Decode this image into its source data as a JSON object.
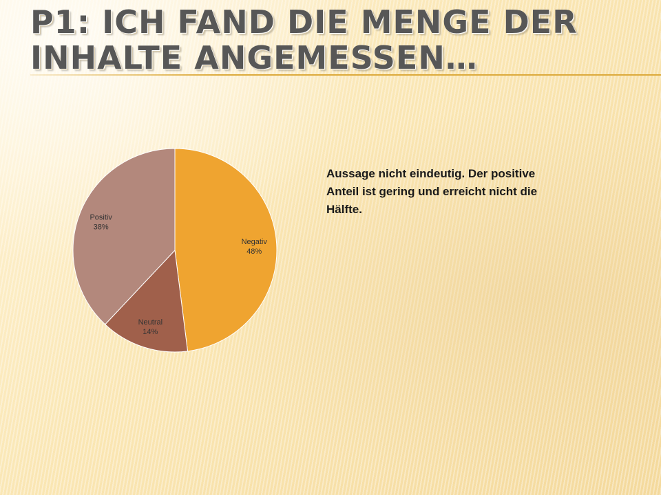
{
  "slide": {
    "title": "P1: Ich fand die Menge der Inhalte angemessen…",
    "body_text": "Aussage nicht eindeutig. Der positive Anteil ist gering und erreicht nicht die Hälfte."
  },
  "colors": {
    "negativ": "#efa430",
    "neutral": "#a0604b",
    "positiv": "#b3887c",
    "title_rule": "#dcaa3c"
  },
  "chart_data": {
    "type": "pie",
    "title": "",
    "categories": [
      "Negativ",
      "Neutral",
      "Positiv"
    ],
    "values": [
      48,
      14,
      38
    ],
    "labels": [
      "48%",
      "14%",
      "38%"
    ],
    "legend": "none",
    "start_angle": "12 o'clock",
    "direction": "clockwise"
  }
}
